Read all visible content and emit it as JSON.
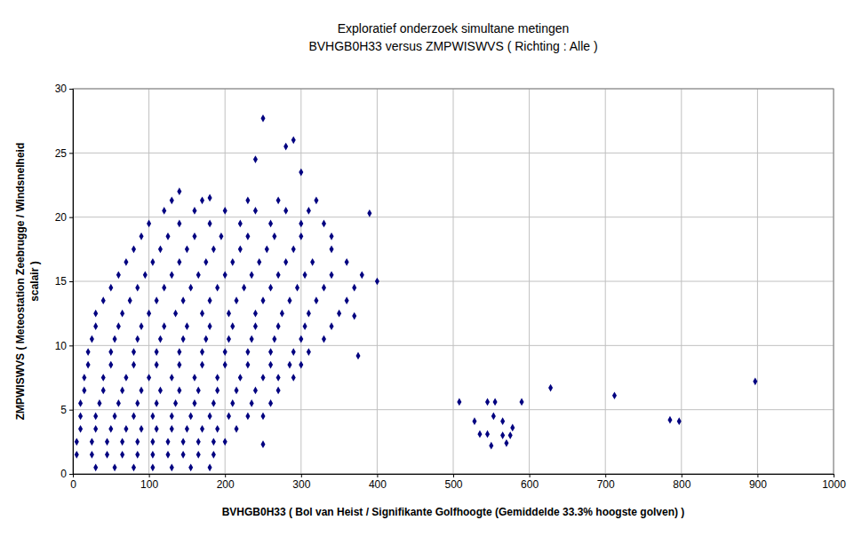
{
  "chart_data": {
    "type": "scatter",
    "title": "Exploratief onderzoek simultane metingen",
    "subtitle": "BVHGB0H33 versus ZMPWISWVS ( Richting : Alle )",
    "xlabel": "BVHGB0H33 ( Bol van Heist / Signifikante Golfhoogte (Gemiddelde 33.3% hoogste golven) )",
    "ylabel": [
      "ZMPWISWVS ( Meteostation Zeebrugge / Windsnelheid",
      "scalair )"
    ],
    "color": "#000080",
    "marker": "diamond",
    "grid": true,
    "xlim": [
      0,
      1000
    ],
    "xticks": [
      0,
      100,
      200,
      300,
      400,
      500,
      600,
      700,
      800,
      900,
      1000
    ],
    "ylim": [
      0,
      30
    ],
    "yticks": [
      0,
      5,
      10,
      15,
      20,
      25,
      30
    ],
    "x": [
      30,
      55,
      80,
      105,
      130,
      155,
      180,
      5,
      25,
      45,
      65,
      85,
      105,
      125,
      145,
      165,
      185,
      5,
      25,
      45,
      65,
      85,
      105,
      125,
      145,
      165,
      185,
      200,
      10,
      30,
      50,
      70,
      90,
      110,
      130,
      150,
      170,
      190,
      215,
      10,
      30,
      55,
      80,
      105,
      130,
      155,
      180,
      205,
      230,
      250,
      10,
      35,
      60,
      85,
      110,
      135,
      160,
      185,
      210,
      235,
      260,
      15,
      40,
      65,
      90,
      115,
      140,
      165,
      190,
      215,
      240,
      270,
      15,
      40,
      70,
      100,
      130,
      160,
      190,
      220,
      250,
      270,
      290,
      20,
      50,
      80,
      110,
      140,
      170,
      200,
      230,
      260,
      285,
      300,
      20,
      50,
      80,
      110,
      140,
      170,
      200,
      230,
      260,
      290,
      310,
      25,
      55,
      85,
      115,
      145,
      175,
      205,
      235,
      265,
      300,
      330,
      30,
      60,
      90,
      120,
      150,
      180,
      210,
      240,
      270,
      305,
      340,
      30,
      65,
      100,
      135,
      170,
      205,
      240,
      275,
      310,
      350,
      40,
      75,
      110,
      145,
      180,
      215,
      250,
      285,
      320,
      360,
      50,
      85,
      120,
      155,
      190,
      225,
      260,
      295,
      330,
      370,
      60,
      95,
      130,
      165,
      200,
      235,
      270,
      305,
      340,
      380,
      70,
      105,
      140,
      175,
      210,
      245,
      280,
      315,
      360,
      80,
      115,
      150,
      185,
      220,
      255,
      290,
      340,
      90,
      125,
      160,
      195,
      230,
      265,
      300,
      340,
      100,
      140,
      180,
      220,
      260,
      300,
      330,
      120,
      160,
      200,
      240,
      280,
      310,
      130,
      170,
      230,
      270,
      320,
      250,
      290,
      280,
      240,
      300,
      140,
      180,
      390,
      400,
      375,
      370,
      250,
      508,
      528,
      535,
      545,
      550,
      553,
      545,
      555,
      565,
      570,
      575,
      578,
      590,
      628,
      712,
      785,
      797,
      897,
      565
    ],
    "values": [
      0.5,
      0.5,
      0.5,
      0.5,
      0.5,
      0.5,
      0.5,
      1.5,
      1.5,
      1.5,
      1.5,
      1.5,
      1.5,
      1.5,
      1.5,
      1.5,
      1.5,
      2.5,
      2.5,
      2.5,
      2.5,
      2.5,
      2.5,
      2.5,
      2.5,
      2.5,
      2.5,
      2.5,
      3.5,
      3.5,
      3.5,
      3.5,
      3.5,
      3.5,
      3.5,
      3.5,
      3.5,
      3.5,
      3.5,
      4.5,
      4.5,
      4.5,
      4.5,
      4.5,
      4.5,
      4.5,
      4.5,
      4.5,
      4.5,
      4.5,
      5.5,
      5.5,
      5.5,
      5.5,
      5.5,
      5.5,
      5.5,
      5.5,
      5.5,
      5.5,
      5.5,
      6.5,
      6.5,
      6.5,
      6.5,
      6.5,
      6.5,
      6.5,
      6.5,
      6.5,
      6.5,
      6.5,
      7.5,
      7.5,
      7.5,
      7.5,
      7.5,
      7.5,
      7.5,
      7.5,
      7.5,
      7.5,
      7.5,
      8.5,
      8.5,
      8.5,
      8.5,
      8.5,
      8.5,
      8.5,
      8.5,
      8.5,
      8.5,
      8.5,
      9.5,
      9.5,
      9.5,
      9.5,
      9.5,
      9.5,
      9.5,
      9.5,
      9.5,
      9.5,
      9.5,
      10.5,
      10.5,
      10.5,
      10.5,
      10.5,
      10.5,
      10.5,
      10.5,
      10.5,
      10.5,
      10.5,
      11.5,
      11.5,
      11.5,
      11.5,
      11.5,
      11.5,
      11.5,
      11.5,
      11.5,
      11.5,
      11.5,
      12.5,
      12.5,
      12.5,
      12.5,
      12.5,
      12.5,
      12.5,
      12.5,
      12.5,
      12.5,
      13.5,
      13.5,
      13.5,
      13.5,
      13.5,
      13.5,
      13.5,
      13.5,
      13.5,
      13.5,
      14.5,
      14.5,
      14.5,
      14.5,
      14.5,
      14.5,
      14.5,
      14.5,
      14.5,
      14.5,
      15.5,
      15.5,
      15.5,
      15.5,
      15.5,
      15.5,
      15.5,
      15.5,
      15.5,
      15.5,
      16.5,
      16.5,
      16.5,
      16.5,
      16.5,
      16.5,
      16.5,
      16.5,
      16.5,
      17.5,
      17.5,
      17.5,
      17.5,
      17.5,
      17.5,
      17.5,
      17.5,
      18.5,
      18.5,
      18.5,
      18.5,
      18.5,
      18.5,
      18.5,
      18.5,
      19.5,
      19.5,
      19.5,
      19.5,
      19.5,
      19.5,
      19.5,
      20.5,
      20.5,
      20.5,
      20.5,
      20.5,
      20.5,
      21.3,
      21.3,
      21.3,
      21.3,
      21.3,
      27.7,
      26,
      25.5,
      24.5,
      23.5,
      22,
      21.5,
      20.3,
      15,
      9.2,
      12.3,
      2.3,
      5.6,
      4.1,
      3.1,
      3.1,
      2.2,
      4.5,
      5.6,
      5.6,
      4.1,
      2.4,
      3,
      3.6,
      5.6,
      6.7,
      6.1,
      4.2,
      4.1,
      7.2,
      3
    ]
  }
}
